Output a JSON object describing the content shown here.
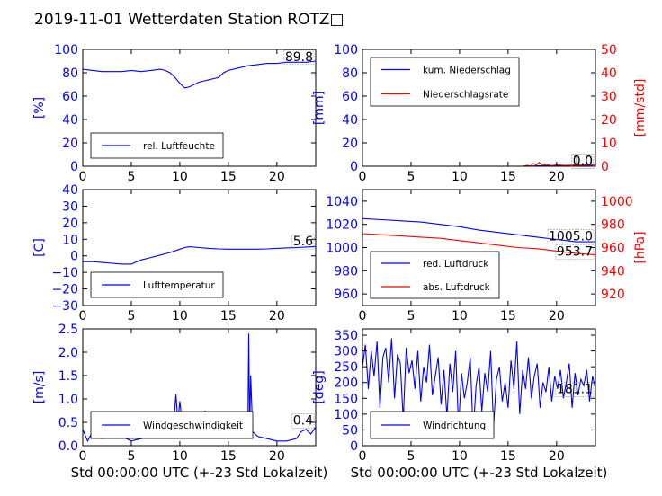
{
  "figure": {
    "title": "2019-11-01 Wetterdaten Station ROTZ□"
  },
  "colors": {
    "blue": "#0000ff",
    "red": "#ff0000",
    "black": "#000000"
  },
  "chart_data": [
    {
      "id": "p1",
      "type": "line",
      "xlim": [
        0,
        24
      ],
      "xticks": [
        0,
        5,
        10,
        15,
        20
      ],
      "ylabel": "[%]",
      "ylim": [
        0,
        100
      ],
      "yticks": [
        0,
        20,
        40,
        60,
        80,
        100
      ],
      "ylabel_color": "#0000ff",
      "legend": {
        "placement": "bottom-left"
      },
      "series": [
        {
          "name": "rel. Luftfeuchte",
          "color": "#0000ff",
          "x": [
            0,
            1,
            2,
            3,
            4,
            5,
            6,
            7,
            8,
            8.5,
            9,
            9.5,
            10,
            10.5,
            11,
            11.5,
            12,
            12.5,
            13,
            13.5,
            14,
            14.5,
            15,
            16,
            17,
            18,
            19,
            20,
            21,
            22,
            23,
            24
          ],
          "y": [
            83,
            82,
            81,
            81,
            81,
            82,
            81,
            82,
            83,
            82,
            80,
            76,
            71,
            67,
            68,
            70,
            72,
            73,
            74,
            75,
            76,
            80,
            82,
            84,
            86,
            87,
            88,
            88,
            89,
            89,
            89,
            90
          ]
        }
      ],
      "annotation": "89.8"
    },
    {
      "id": "p2",
      "type": "line",
      "xlim": [
        0,
        24
      ],
      "xticks": [
        0,
        5,
        10,
        15,
        20
      ],
      "ylabel": "[mm]",
      "ylim": [
        0,
        100
      ],
      "yticks": [
        0,
        20,
        40,
        60,
        80,
        100
      ],
      "ylabel_color": "#0000ff",
      "ylabel2": "[mm/std]",
      "ylim2": [
        0,
        50
      ],
      "yticks2": [
        0,
        10,
        20,
        30,
        40,
        50
      ],
      "ylabel2_color": "#ff0000",
      "legend": {
        "placement": "top-left"
      },
      "series": [
        {
          "name": "kum. Niederschlag",
          "color": "#0000ff",
          "axis": "left",
          "x": [
            0,
            17,
            18,
            20,
            22,
            24
          ],
          "y": [
            0,
            0,
            0.3,
            0.6,
            0.9,
            1.0
          ]
        },
        {
          "name": "Niederschlagsrate",
          "color": "#ff0000",
          "axis": "right",
          "x": [
            0,
            16.5,
            17,
            17.3,
            17.6,
            17.9,
            18.2,
            18.6,
            19,
            19.5,
            20,
            21,
            22,
            23,
            24
          ],
          "y": [
            0,
            0,
            0.4,
            0,
            1.2,
            0.5,
            1.6,
            0.4,
            0.8,
            0.2,
            0.6,
            0.3,
            0.5,
            0.2,
            0.4
          ]
        }
      ],
      "annotation": "1.0",
      "annotation2": "0.0"
    },
    {
      "id": "p3",
      "type": "line",
      "xlim": [
        0,
        24
      ],
      "xticks": [
        0,
        5,
        10,
        15,
        20
      ],
      "ylabel": "[C]",
      "ylim": [
        -30,
        40
      ],
      "yticks": [
        -30,
        -20,
        -10,
        0,
        10,
        20,
        30,
        40
      ],
      "ylabel_color": "#0000ff",
      "legend": {
        "placement": "bottom-left"
      },
      "series": [
        {
          "name": "Lufttemperatur",
          "color": "#0000ff",
          "x": [
            0,
            1,
            2,
            3,
            4,
            5,
            6,
            7,
            8,
            9,
            10,
            10.5,
            11,
            12,
            13,
            14,
            15,
            16,
            17,
            18,
            19,
            20,
            21,
            22,
            23,
            24
          ],
          "y": [
            -3.5,
            -3.5,
            -4,
            -4.5,
            -5,
            -5,
            -2.5,
            -1,
            0.5,
            2,
            4,
            5,
            5.5,
            5,
            4.5,
            4.2,
            4,
            4,
            4,
            4,
            4.2,
            4.5,
            4.8,
            5,
            5.3,
            5.6
          ]
        }
      ],
      "annotation": "5.6"
    },
    {
      "id": "p4",
      "type": "line",
      "xlim": [
        0,
        24
      ],
      "xticks": [
        0,
        5,
        10,
        15,
        20
      ],
      "ylim": [
        950,
        1050
      ],
      "yticks": [
        960,
        980,
        1000,
        1020,
        1040
      ],
      "ylabel_color": "#0000ff",
      "ylabel2": "[hPa]",
      "ylim2": [
        910,
        1010
      ],
      "yticks2": [
        920,
        940,
        960,
        980,
        1000
      ],
      "ylabel2_color": "#ff0000",
      "legend": {
        "placement": "bottom-left"
      },
      "series": [
        {
          "name": "red. Luftdruck",
          "color": "#0000ff",
          "axis": "left",
          "x": [
            0,
            2,
            4,
            6,
            8,
            10,
            12,
            14,
            16,
            18,
            20,
            22,
            24
          ],
          "y": [
            1025,
            1024,
            1023,
            1022,
            1020,
            1018,
            1015,
            1013,
            1011,
            1009,
            1007,
            1005,
            1005
          ]
        },
        {
          "name": "abs. Luftdruck",
          "color": "#ff0000",
          "axis": "right",
          "x": [
            0,
            2,
            4,
            6,
            8,
            10,
            12,
            14,
            16,
            18,
            20,
            22,
            24
          ],
          "y": [
            972,
            971,
            970,
            969,
            968,
            966,
            964,
            962,
            960,
            959,
            957,
            955,
            953.7
          ]
        }
      ],
      "annotation": "1005.0",
      "annotation2": "953.7"
    },
    {
      "id": "p5",
      "type": "line",
      "xlim": [
        0,
        24
      ],
      "xticks": [
        0,
        5,
        10,
        15,
        20
      ],
      "xlabel": "Std 00:00:00 UTC (+-23 Std Lokalzeit)",
      "ylabel": "[m/s]",
      "ylim": [
        0,
        2.5
      ],
      "yticks": [
        0.0,
        0.5,
        1.0,
        1.5,
        2.0,
        2.5
      ],
      "ylabel_color": "#0000ff",
      "legend": {
        "placement": "bottom-left"
      },
      "series": [
        {
          "name": "Windgeschwindigkeit",
          "color": "#0000ff",
          "x": [
            0,
            0.5,
            1,
            1.5,
            2,
            3,
            4,
            5,
            6,
            7,
            8,
            8.5,
            9,
            9.3,
            9.6,
            9.8,
            10,
            10.3,
            10.6,
            11,
            11.3,
            11.6,
            12,
            12.3,
            12.6,
            13,
            13.5,
            14,
            15,
            16,
            16.5,
            17,
            17.1,
            17.2,
            17.3,
            17.5,
            18,
            19,
            20,
            21,
            22,
            22.5,
            23,
            23.5,
            24
          ],
          "y": [
            0.35,
            0.1,
            0.3,
            0.2,
            0.15,
            0.25,
            0.2,
            0.1,
            0.15,
            0.2,
            0.2,
            0.35,
            0.6,
            0.3,
            1.1,
            0.5,
            0.95,
            0.4,
            0.7,
            0.55,
            0.25,
            0.65,
            0.5,
            0.2,
            0.75,
            0.3,
            0.45,
            0.2,
            0.25,
            0.2,
            0.3,
            0.2,
            2.4,
            0.3,
            1.5,
            0.3,
            0.2,
            0.15,
            0.1,
            0.1,
            0.15,
            0.3,
            0.35,
            0.25,
            0.4
          ]
        }
      ],
      "annotation": "0.4"
    },
    {
      "id": "p6",
      "type": "line",
      "xlim": [
        0,
        24
      ],
      "xticks": [
        0,
        5,
        10,
        15,
        20
      ],
      "xlabel": "Std 00:00:00 UTC (+-23 Std Lokalzeit)",
      "ylabel": "[deg]",
      "ylim": [
        0,
        370
      ],
      "yticks": [
        0,
        50,
        100,
        150,
        200,
        250,
        300,
        350
      ],
      "ylabel_color": "#0000ff",
      "legend": {
        "placement": "bottom-left"
      },
      "series": [
        {
          "name": "Windrichtung",
          "color": "#0000ff",
          "x": [
            0,
            0.3,
            0.6,
            0.9,
            1.2,
            1.5,
            1.8,
            2.1,
            2.4,
            2.7,
            3,
            3.3,
            3.6,
            3.9,
            4.2,
            4.5,
            4.8,
            5.1,
            5.4,
            5.7,
            6,
            6.3,
            6.6,
            6.9,
            7.2,
            7.5,
            7.8,
            8.1,
            8.4,
            8.7,
            9,
            9.3,
            9.6,
            9.9,
            10.2,
            10.5,
            10.8,
            11.1,
            11.4,
            11.7,
            12,
            12.3,
            12.6,
            12.9,
            13.2,
            13.5,
            13.8,
            14.1,
            14.4,
            14.7,
            15,
            15.3,
            15.6,
            15.9,
            16.2,
            16.5,
            16.8,
            17.1,
            17.4,
            17.7,
            18,
            18.3,
            18.6,
            18.9,
            19.2,
            19.5,
            19.8,
            20.1,
            20.4,
            20.7,
            21,
            21.3,
            21.6,
            21.9,
            22.2,
            22.5,
            22.8,
            23.1,
            23.4,
            23.7,
            24
          ],
          "y": [
            250,
            320,
            180,
            300,
            220,
            330,
            120,
            280,
            310,
            200,
            340,
            150,
            290,
            260,
            80,
            310,
            230,
            270,
            180,
            300,
            140,
            250,
            200,
            320,
            160,
            220,
            280,
            130,
            240,
            90,
            260,
            170,
            300,
            60,
            230,
            150,
            200,
            280,
            40,
            190,
            250,
            110,
            230,
            170,
            300,
            60,
            210,
            250,
            140,
            200,
            120,
            270,
            180,
            330,
            100,
            240,
            180,
            280,
            150,
            220,
            260,
            120,
            200,
            170,
            250,
            140,
            220,
            180,
            240,
            150,
            200,
            260,
            120,
            230,
            160,
            210,
            190,
            240,
            140,
            220,
            181
          ]
        }
      ],
      "annotation": "181.1"
    }
  ]
}
